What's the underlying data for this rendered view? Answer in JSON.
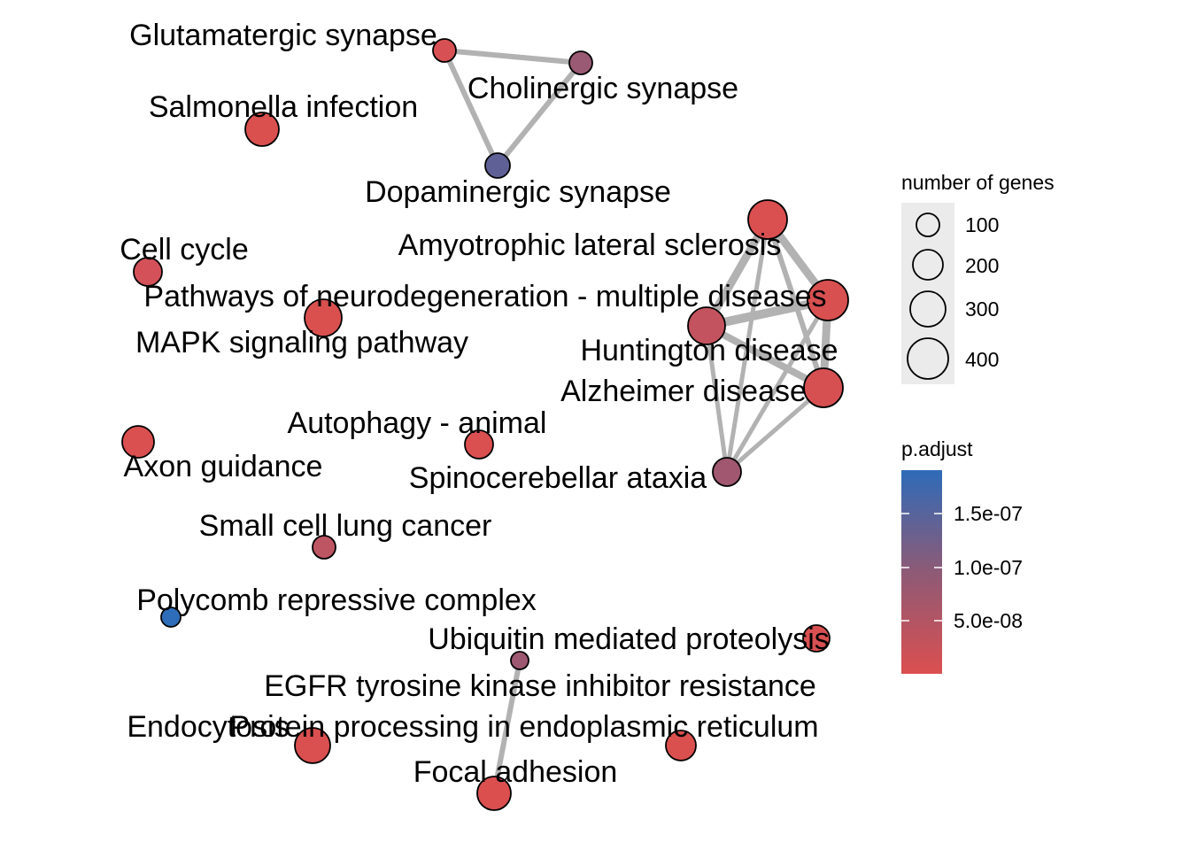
{
  "colors": {
    "low_padj": "#DB4F4F",
    "mid_padj": "#8E5A76",
    "high_padj": "#2E6BB8",
    "edge": "#B2B2B2",
    "size_legend_bg": "#EBEBEB"
  },
  "network": {
    "nodes": [
      {
        "id": "glut",
        "label": "Glutamatergic synapse",
        "color": "#D75053"
      },
      {
        "id": "chol",
        "label": "Cholinergic synapse",
        "color": "#9A5A74"
      },
      {
        "id": "dopa",
        "label": "Dopaminergic synapse",
        "color": "#5F6196"
      },
      {
        "id": "salm",
        "label": "Salmonella infection",
        "color": "#D9504F"
      },
      {
        "id": "cell",
        "label": "Cell cycle",
        "color": "#D4515A"
      },
      {
        "id": "path",
        "label": "Pathways of neurodegeneration - multiple diseases",
        "color": "#D85050"
      },
      {
        "id": "mapk",
        "label": "MAPK signaling pathway",
        "color": "#D9504F"
      },
      {
        "id": "als",
        "label": "Amyotrophic lateral sclerosis",
        "color": "#DA4F4F"
      },
      {
        "id": "hunt",
        "label": "Huntington disease",
        "color": "#C3545F"
      },
      {
        "id": "alz",
        "label": "Alzheimer disease",
        "color": "#D65052"
      },
      {
        "id": "spin",
        "label": "Spinocerebellar ataxia",
        "color": "#A0576F"
      },
      {
        "id": "auto",
        "label": "Autophagy - animal",
        "color": "#DA4F4F"
      },
      {
        "id": "axon",
        "label": "Axon guidance",
        "color": "#DA4F4F"
      },
      {
        "id": "sclc",
        "label": "Small cell lung cancer",
        "color": "#BE5562"
      },
      {
        "id": "poly",
        "label": "Polycomb repressive complex",
        "color": "#2E6DB9"
      },
      {
        "id": "ubiq",
        "label": "Ubiquitin mediated proteolysis",
        "color": "#D85051"
      },
      {
        "id": "egfr",
        "label": "EGFR tyrosine kinase inhibitor resistance",
        "color": "#9E5871"
      },
      {
        "id": "endo",
        "label": "Endocytosis",
        "color": "#DA4F4F"
      },
      {
        "id": "prot",
        "label": "Protein processing in endoplasmic reticulum",
        "color": "#D9504F"
      },
      {
        "id": "foca",
        "label": "Focal adhesion",
        "color": "#DB4F4F"
      }
    ],
    "edges": [
      {
        "source": "glut",
        "target": "chol"
      },
      {
        "source": "glut",
        "target": "dopa"
      },
      {
        "source": "chol",
        "target": "dopa"
      },
      {
        "source": "als",
        "target": "path"
      },
      {
        "source": "als",
        "target": "hunt"
      },
      {
        "source": "als",
        "target": "alz"
      },
      {
        "source": "als",
        "target": "spin"
      },
      {
        "source": "path",
        "target": "hunt"
      },
      {
        "source": "path",
        "target": "alz"
      },
      {
        "source": "path",
        "target": "spin"
      },
      {
        "source": "hunt",
        "target": "alz"
      },
      {
        "source": "hunt",
        "target": "spin"
      },
      {
        "source": "alz",
        "target": "spin"
      },
      {
        "source": "egfr",
        "target": "foca"
      }
    ]
  },
  "legend_size": {
    "title": "number of genes",
    "entries": [
      {
        "label": "100",
        "value": 100
      },
      {
        "label": "200",
        "value": 200
      },
      {
        "label": "300",
        "value": 300
      },
      {
        "label": "400",
        "value": 400
      }
    ]
  },
  "legend_color": {
    "title": "p.adjust",
    "ticks": [
      {
        "label": "1.5e-07",
        "value": 1.5e-07
      },
      {
        "label": "1.0e-07",
        "value": 1e-07
      },
      {
        "label": "5.0e-08",
        "value": 5e-08
      }
    ]
  }
}
